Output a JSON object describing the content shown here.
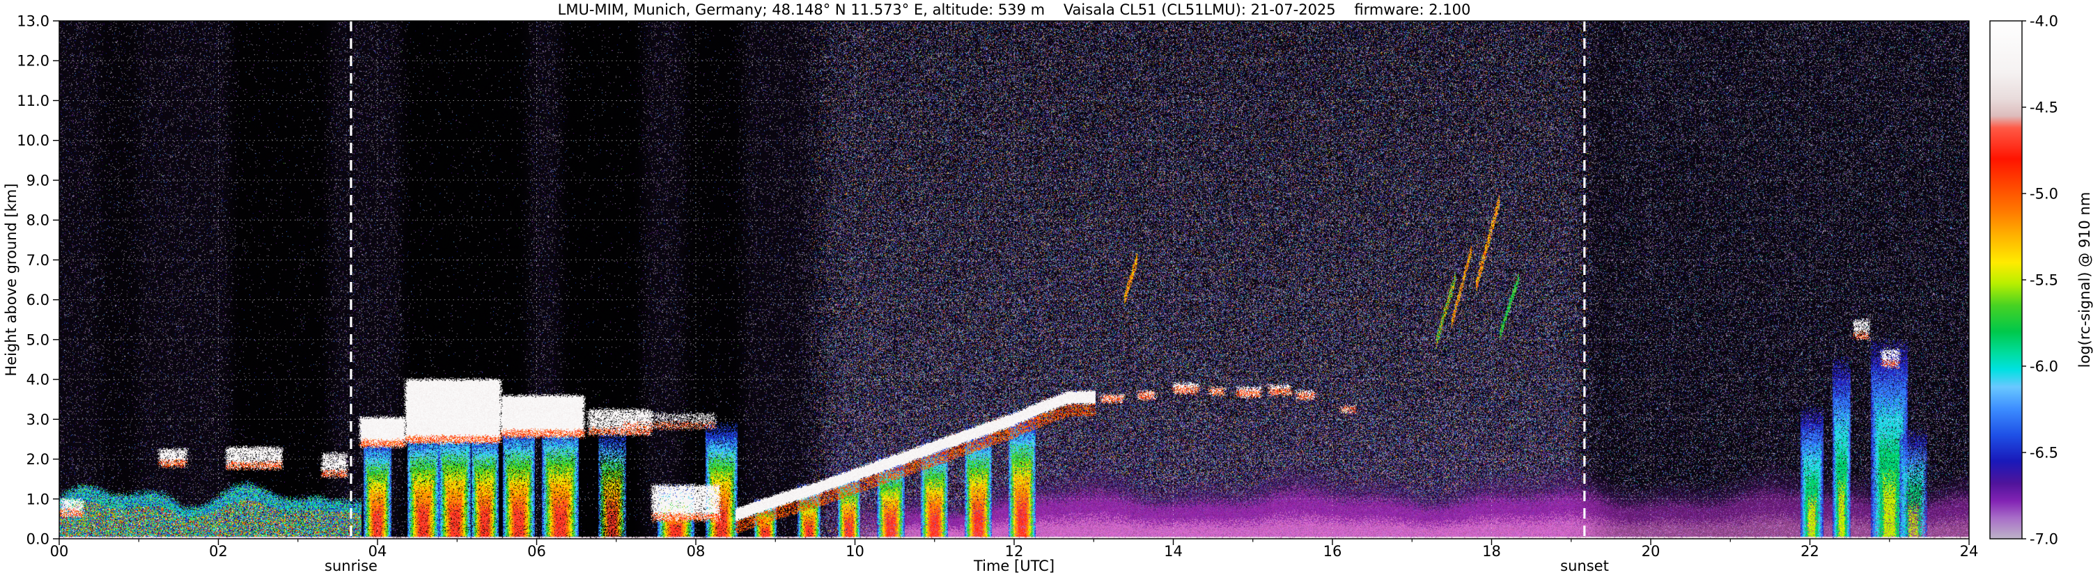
{
  "title": "LMU-MIM, Munich, Germany; 48.148° N 11.573° E, altitude: 539 m    Vaisala CL51 (CL51LMU): 21-07-2025    firmware: 2.100",
  "axes": {
    "xlabel": "Time [UTC]",
    "ylabel": "Height above ground [km]",
    "x_range": [
      0,
      24
    ],
    "y_range": [
      0,
      13
    ],
    "x_ticks": [
      {
        "t": 0,
        "label": "00"
      },
      {
        "t": 2,
        "label": "02"
      },
      {
        "t": 4,
        "label": "04"
      },
      {
        "t": 6,
        "label": "06"
      },
      {
        "t": 8,
        "label": "08"
      },
      {
        "t": 10,
        "label": "10"
      },
      {
        "t": 12,
        "label": "12"
      },
      {
        "t": 14,
        "label": "14"
      },
      {
        "t": 16,
        "label": "16"
      },
      {
        "t": 18,
        "label": "18"
      },
      {
        "t": 20,
        "label": "20"
      },
      {
        "t": 22,
        "label": "22"
      },
      {
        "t": 24,
        "label": "24"
      }
    ],
    "x_minor_step": 1,
    "y_ticks": [
      {
        "km": 0,
        "label": "0.0"
      },
      {
        "km": 1,
        "label": "1.0"
      },
      {
        "km": 2,
        "label": "2.0"
      },
      {
        "km": 3,
        "label": "3.0"
      },
      {
        "km": 4,
        "label": "4.0"
      },
      {
        "km": 5,
        "label": "5.0"
      },
      {
        "km": 6,
        "label": "6.0"
      },
      {
        "km": 7,
        "label": "7.0"
      },
      {
        "km": 8,
        "label": "8.0"
      },
      {
        "km": 9,
        "label": "9.0"
      },
      {
        "km": 10,
        "label": "10.0"
      },
      {
        "km": 11,
        "label": "11.0"
      },
      {
        "km": 12,
        "label": "12.0"
      },
      {
        "km": 13,
        "label": "13.0"
      }
    ]
  },
  "annotations": {
    "sunrise": {
      "label": "sunrise",
      "t": 3.667
    },
    "sunset": {
      "label": "sunset",
      "t": 19.167
    }
  },
  "colorbar": {
    "label": "log(rc-signal) @ 910 nm",
    "range": [
      -7,
      -4
    ],
    "ticks": [
      {
        "v": -4.0,
        "label": "-4.0"
      },
      {
        "v": -4.5,
        "label": "-4.5"
      },
      {
        "v": -5.0,
        "label": "-5.0"
      },
      {
        "v": -5.5,
        "label": "-5.5"
      },
      {
        "v": -6.0,
        "label": "-6.0"
      },
      {
        "v": -6.5,
        "label": "-6.5"
      },
      {
        "v": -7.0,
        "label": "-7.0"
      }
    ]
  },
  "chart_data": {
    "type": "heatmap",
    "x_axis": "time [UTC hours]",
    "y_axis": "height above ground [km]",
    "value": "log(rc-signal) @ 910 nm",
    "value_range": [
      -7,
      -4
    ],
    "colormap": [
      [
        -7.0,
        "#beb4c8"
      ],
      [
        -6.88,
        "#a86ec8"
      ],
      [
        -6.78,
        "#8223b4"
      ],
      [
        -6.68,
        "#50149b"
      ],
      [
        -6.55,
        "#1919b9"
      ],
      [
        -6.4,
        "#1e50e6"
      ],
      [
        -6.25,
        "#3c8cff"
      ],
      [
        -6.12,
        "#69c8ff"
      ],
      [
        -6.02,
        "#00e1e1"
      ],
      [
        -5.92,
        "#00dc9b"
      ],
      [
        -5.8,
        "#00c84b"
      ],
      [
        -5.65,
        "#46d223"
      ],
      [
        -5.52,
        "#b9ef00"
      ],
      [
        -5.4,
        "#ffeb00"
      ],
      [
        -5.25,
        "#ffb400"
      ],
      [
        -5.1,
        "#ff7800"
      ],
      [
        -4.8,
        "#ff1400"
      ],
      [
        -4.62,
        "#ff5a46"
      ],
      [
        -4.55,
        "#ddbcbc"
      ],
      [
        -4.45,
        "#e9dcdc"
      ],
      [
        -4.3,
        "#f5f2f2"
      ],
      [
        -4.0,
        "#ffffff"
      ]
    ],
    "darkbands": [
      [
        0.5,
        1.0,
        0.45
      ],
      [
        2.15,
        3.4,
        0.8
      ],
      [
        4.3,
        5.9,
        0.85
      ],
      [
        6.3,
        7.35,
        0.85
      ],
      [
        7.85,
        8.6,
        0.75
      ]
    ],
    "haze": {
      "start": 9.4,
      "base": 1.05,
      "grow": 0.55
    },
    "bl_band": {
      "pts": [
        [
          8.5,
          0.6
        ],
        [
          9.0,
          0.95
        ],
        [
          9.5,
          1.25
        ],
        [
          10.0,
          1.6
        ],
        [
          10.5,
          1.95
        ],
        [
          11.0,
          2.3
        ],
        [
          11.5,
          2.65
        ],
        [
          12.0,
          3.0
        ],
        [
          12.35,
          3.3
        ],
        [
          12.7,
          3.55
        ],
        [
          13.02,
          3.55
        ]
      ]
    },
    "features": [
      {
        "type": "mixedlow",
        "t0": 0,
        "t1": 3.8
      },
      {
        "type": "cloud",
        "t0": 0.02,
        "t1": 0.3,
        "h0": 0.55,
        "h1": 1.0,
        "i": 0.8
      },
      {
        "type": "cloud",
        "t0": 1.25,
        "t1": 1.6,
        "h0": 1.8,
        "h1": 2.25,
        "i": 0.85
      },
      {
        "type": "cloud",
        "t0": 2.1,
        "t1": 2.8,
        "h0": 1.75,
        "h1": 2.3,
        "i": 0.85
      },
      {
        "type": "cloud",
        "t0": 3.3,
        "t1": 3.62,
        "h0": 1.55,
        "h1": 2.15,
        "i": 0.8
      },
      {
        "type": "plume",
        "t0": 3.85,
        "t1": 4.15,
        "htop": 2.5
      },
      {
        "type": "plume",
        "t0": 4.4,
        "t1": 4.75,
        "htop": 2.7
      },
      {
        "type": "plume",
        "t0": 4.8,
        "t1": 5.15,
        "htop": 2.8
      },
      {
        "type": "plume",
        "t0": 5.2,
        "t1": 5.5,
        "htop": 2.7
      },
      {
        "type": "plume",
        "t0": 5.6,
        "t1": 5.95,
        "htop": 2.8
      },
      {
        "type": "plume",
        "t0": 6.1,
        "t1": 6.5,
        "htop": 2.9
      },
      {
        "type": "plume",
        "t0": 6.8,
        "t1": 7.1,
        "htop": 2.6,
        "i": 0.7
      },
      {
        "type": "plume",
        "t0": 7.55,
        "t1": 7.95,
        "htop": 1.3
      },
      {
        "type": "plume",
        "t0": 8.15,
        "t1": 8.5,
        "htop": 2.75
      },
      {
        "type": "cloud",
        "t0": 3.78,
        "t1": 4.35,
        "h0": 2.3,
        "h1": 3.05
      },
      {
        "type": "cloud",
        "t0": 4.35,
        "t1": 5.55,
        "h0": 2.4,
        "h1": 4.0
      },
      {
        "type": "cloud",
        "t0": 5.55,
        "t1": 6.6,
        "h0": 2.55,
        "h1": 3.6
      },
      {
        "type": "cloud",
        "t0": 6.65,
        "t1": 7.45,
        "h0": 2.6,
        "h1": 3.25,
        "i": 0.8
      },
      {
        "type": "cloud",
        "t0": 7.1,
        "t1": 8.25,
        "h0": 2.75,
        "h1": 3.15,
        "i": 0.5
      },
      {
        "type": "cloud",
        "t0": 7.45,
        "t1": 8.3,
        "h0": 0.45,
        "h1": 1.35,
        "i": 0.9
      },
      {
        "type": "plume",
        "t0": 8.75,
        "t1": 9.0,
        "htop": 0.95
      },
      {
        "type": "plume",
        "t0": 9.3,
        "t1": 9.55,
        "htop": 1.3
      },
      {
        "type": "plume",
        "t0": 9.8,
        "t1": 10.05,
        "htop": 1.65
      },
      {
        "type": "plume",
        "t0": 10.3,
        "t1": 10.6,
        "htop": 2.0
      },
      {
        "type": "plume",
        "t0": 10.85,
        "t1": 11.15,
        "htop": 2.35
      },
      {
        "type": "plume",
        "t0": 11.4,
        "t1": 11.7,
        "htop": 2.7
      },
      {
        "type": "plume",
        "t0": 11.95,
        "t1": 12.25,
        "htop": 3.05
      },
      {
        "type": "blband",
        "t0": 8.5,
        "t1": 13.02
      },
      {
        "type": "cloud",
        "t0": 13.1,
        "t1": 13.38,
        "h0": 3.42,
        "h1": 3.62,
        "i": 0.9
      },
      {
        "type": "cloud",
        "t0": 13.55,
        "t1": 13.78,
        "h0": 3.5,
        "h1": 3.7,
        "i": 0.9
      },
      {
        "type": "cloud",
        "t0": 14.0,
        "t1": 14.32,
        "h0": 3.65,
        "h1": 3.9,
        "i": 0.9
      },
      {
        "type": "cloud",
        "t0": 14.45,
        "t1": 14.65,
        "h0": 3.6,
        "h1": 3.8,
        "i": 0.85
      },
      {
        "type": "cloud",
        "t0": 14.8,
        "t1": 15.1,
        "h0": 3.55,
        "h1": 3.8,
        "i": 0.9
      },
      {
        "type": "cloud",
        "t0": 15.2,
        "t1": 15.48,
        "h0": 3.6,
        "h1": 3.85,
        "i": 0.85
      },
      {
        "type": "cloud",
        "t0": 15.55,
        "t1": 15.78,
        "h0": 3.5,
        "h1": 3.72,
        "i": 0.85
      },
      {
        "type": "cloud",
        "t0": 16.1,
        "t1": 16.3,
        "h0": 3.15,
        "h1": 3.35,
        "i": 0.6
      },
      {
        "type": "streak",
        "t0": 13.38,
        "t1": 13.55,
        "h0": 5.95,
        "h1": 7.05,
        "th": 0.3,
        "pal": "orange"
      },
      {
        "type": "streak",
        "t0": 17.3,
        "t1": 17.55,
        "h0": 4.9,
        "h1": 6.6,
        "th": 0.3,
        "pal": "mix"
      },
      {
        "type": "streak",
        "t0": 17.5,
        "t1": 17.75,
        "h0": 5.4,
        "h1": 7.3,
        "th": 0.28,
        "pal": "orange"
      },
      {
        "type": "streak",
        "t0": 17.8,
        "t1": 18.1,
        "h0": 6.3,
        "h1": 8.5,
        "th": 0.34,
        "pal": "orange"
      },
      {
        "type": "streak",
        "t0": 18.1,
        "t1": 18.35,
        "h0": 5.1,
        "h1": 6.6,
        "th": 0.26,
        "pal": "green"
      },
      {
        "type": "plume",
        "t0": 21.9,
        "t1": 22.15,
        "htop": 3.1,
        "cool": true
      },
      {
        "type": "plume",
        "t0": 22.3,
        "t1": 22.5,
        "htop": 4.3,
        "cool": true
      },
      {
        "type": "cloud",
        "t0": 22.55,
        "t1": 22.75,
        "h0": 5.0,
        "h1": 5.5,
        "i": 0.7
      },
      {
        "type": "plume",
        "t0": 22.8,
        "t1": 23.2,
        "htop": 4.7,
        "cool": true
      },
      {
        "type": "cloud",
        "t0": 22.9,
        "t1": 23.12,
        "h0": 4.3,
        "h1": 4.75,
        "i": 0.7
      },
      {
        "type": "plume",
        "t0": 23.15,
        "t1": 23.45,
        "htop": 2.6,
        "cool": true,
        "i": 0.7
      }
    ]
  }
}
